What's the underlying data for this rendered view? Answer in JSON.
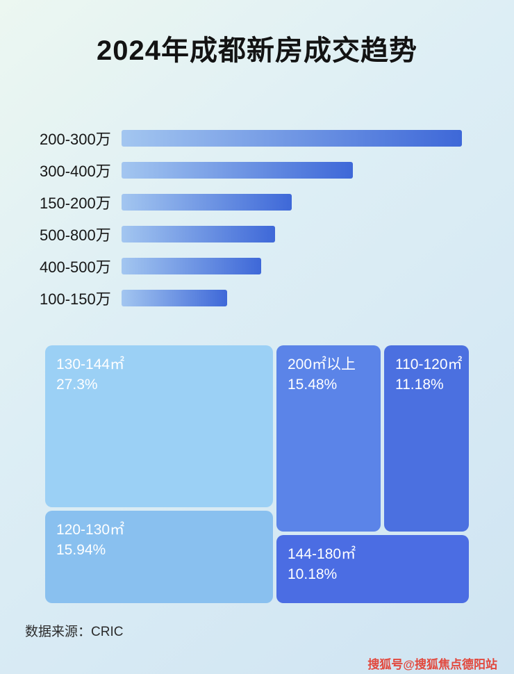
{
  "header": {
    "title": "2024年成都新房成交趋势"
  },
  "footer": {
    "source": "数据来源：CRIC",
    "watermark": "搜狐号@搜狐焦点德阳站"
  },
  "colors": {
    "bar_gradient_start": "#a3c6f0",
    "bar_gradient_end": "#3e68d8",
    "background_top": "#ecf7f1",
    "background_bottom": "#cfe4f2",
    "watermark_red": "#e2483d"
  },
  "chart_data": [
    {
      "type": "bar",
      "orientation": "horizontal",
      "title": "2024年成都新房成交趋势",
      "categories": [
        "200-300万",
        "300-400万",
        "150-200万",
        "500-800万",
        "400-500万",
        "100-150万"
      ],
      "values": [
        100,
        68,
        50,
        45,
        41,
        31
      ],
      "values_note": "axis unlabeled; values are bar lengths relative to longest bar = 100",
      "xlabel": "",
      "ylabel": "",
      "xlim": [
        0,
        100
      ],
      "grid": false,
      "legend": false,
      "bar_gradient": [
        "#a3c6f0",
        "#3e68d8"
      ]
    },
    {
      "type": "treemap",
      "items": [
        {
          "label": "130-144㎡",
          "value": "27.3%",
          "percent": 27.3,
          "color": "#9bd0f5"
        },
        {
          "label": "200㎡以上",
          "value": "15.48%",
          "percent": 15.48,
          "color": "#5b84e8"
        },
        {
          "label": "110-120㎡",
          "value": "11.18%",
          "percent": 11.18,
          "color": "#4b70e0"
        },
        {
          "label": "120-130㎡",
          "value": "15.94%",
          "percent": 15.94,
          "color": "#89c0ef"
        },
        {
          "label": "144-180㎡",
          "value": "10.18%",
          "percent": 10.18,
          "color": "#4b6de3"
        }
      ]
    }
  ]
}
